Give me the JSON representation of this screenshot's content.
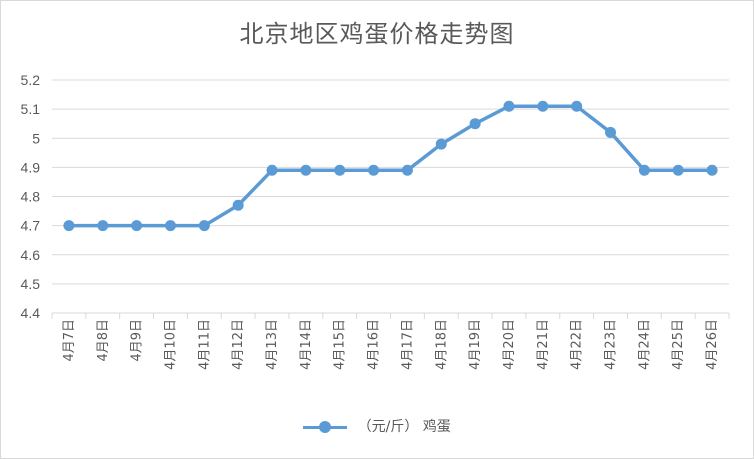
{
  "chart_data": {
    "type": "line",
    "title": "北京地区鸡蛋价格走势图",
    "xlabel": "",
    "ylabel": "",
    "categories": [
      "4月7日",
      "4月8日",
      "4月9日",
      "4月10日",
      "4月11日",
      "4月12日",
      "4月13日",
      "4月14日",
      "4月15日",
      "4月16日",
      "4月17日",
      "4月18日",
      "4月19日",
      "4月20日",
      "4月21日",
      "4月22日",
      "4月23日",
      "4月24日",
      "4月25日",
      "4月26日"
    ],
    "series": [
      {
        "name": "（元/斤） 鸡蛋",
        "values": [
          4.7,
          4.7,
          4.7,
          4.7,
          4.7,
          4.77,
          4.89,
          4.89,
          4.89,
          4.89,
          4.89,
          4.98,
          5.05,
          5.11,
          5.11,
          5.11,
          5.02,
          4.89,
          4.89,
          4.89
        ]
      }
    ],
    "ylim": [
      4.4,
      5.2
    ],
    "yticks": [
      "4.4",
      "4.5",
      "4.6",
      "4.7",
      "4.8",
      "4.9",
      "5",
      "5.1",
      "5.2"
    ],
    "grid": true,
    "legend_position": "bottom",
    "colors": {
      "series": "#5b9bd5",
      "grid": "#d9d9d9",
      "text": "#595959"
    }
  }
}
